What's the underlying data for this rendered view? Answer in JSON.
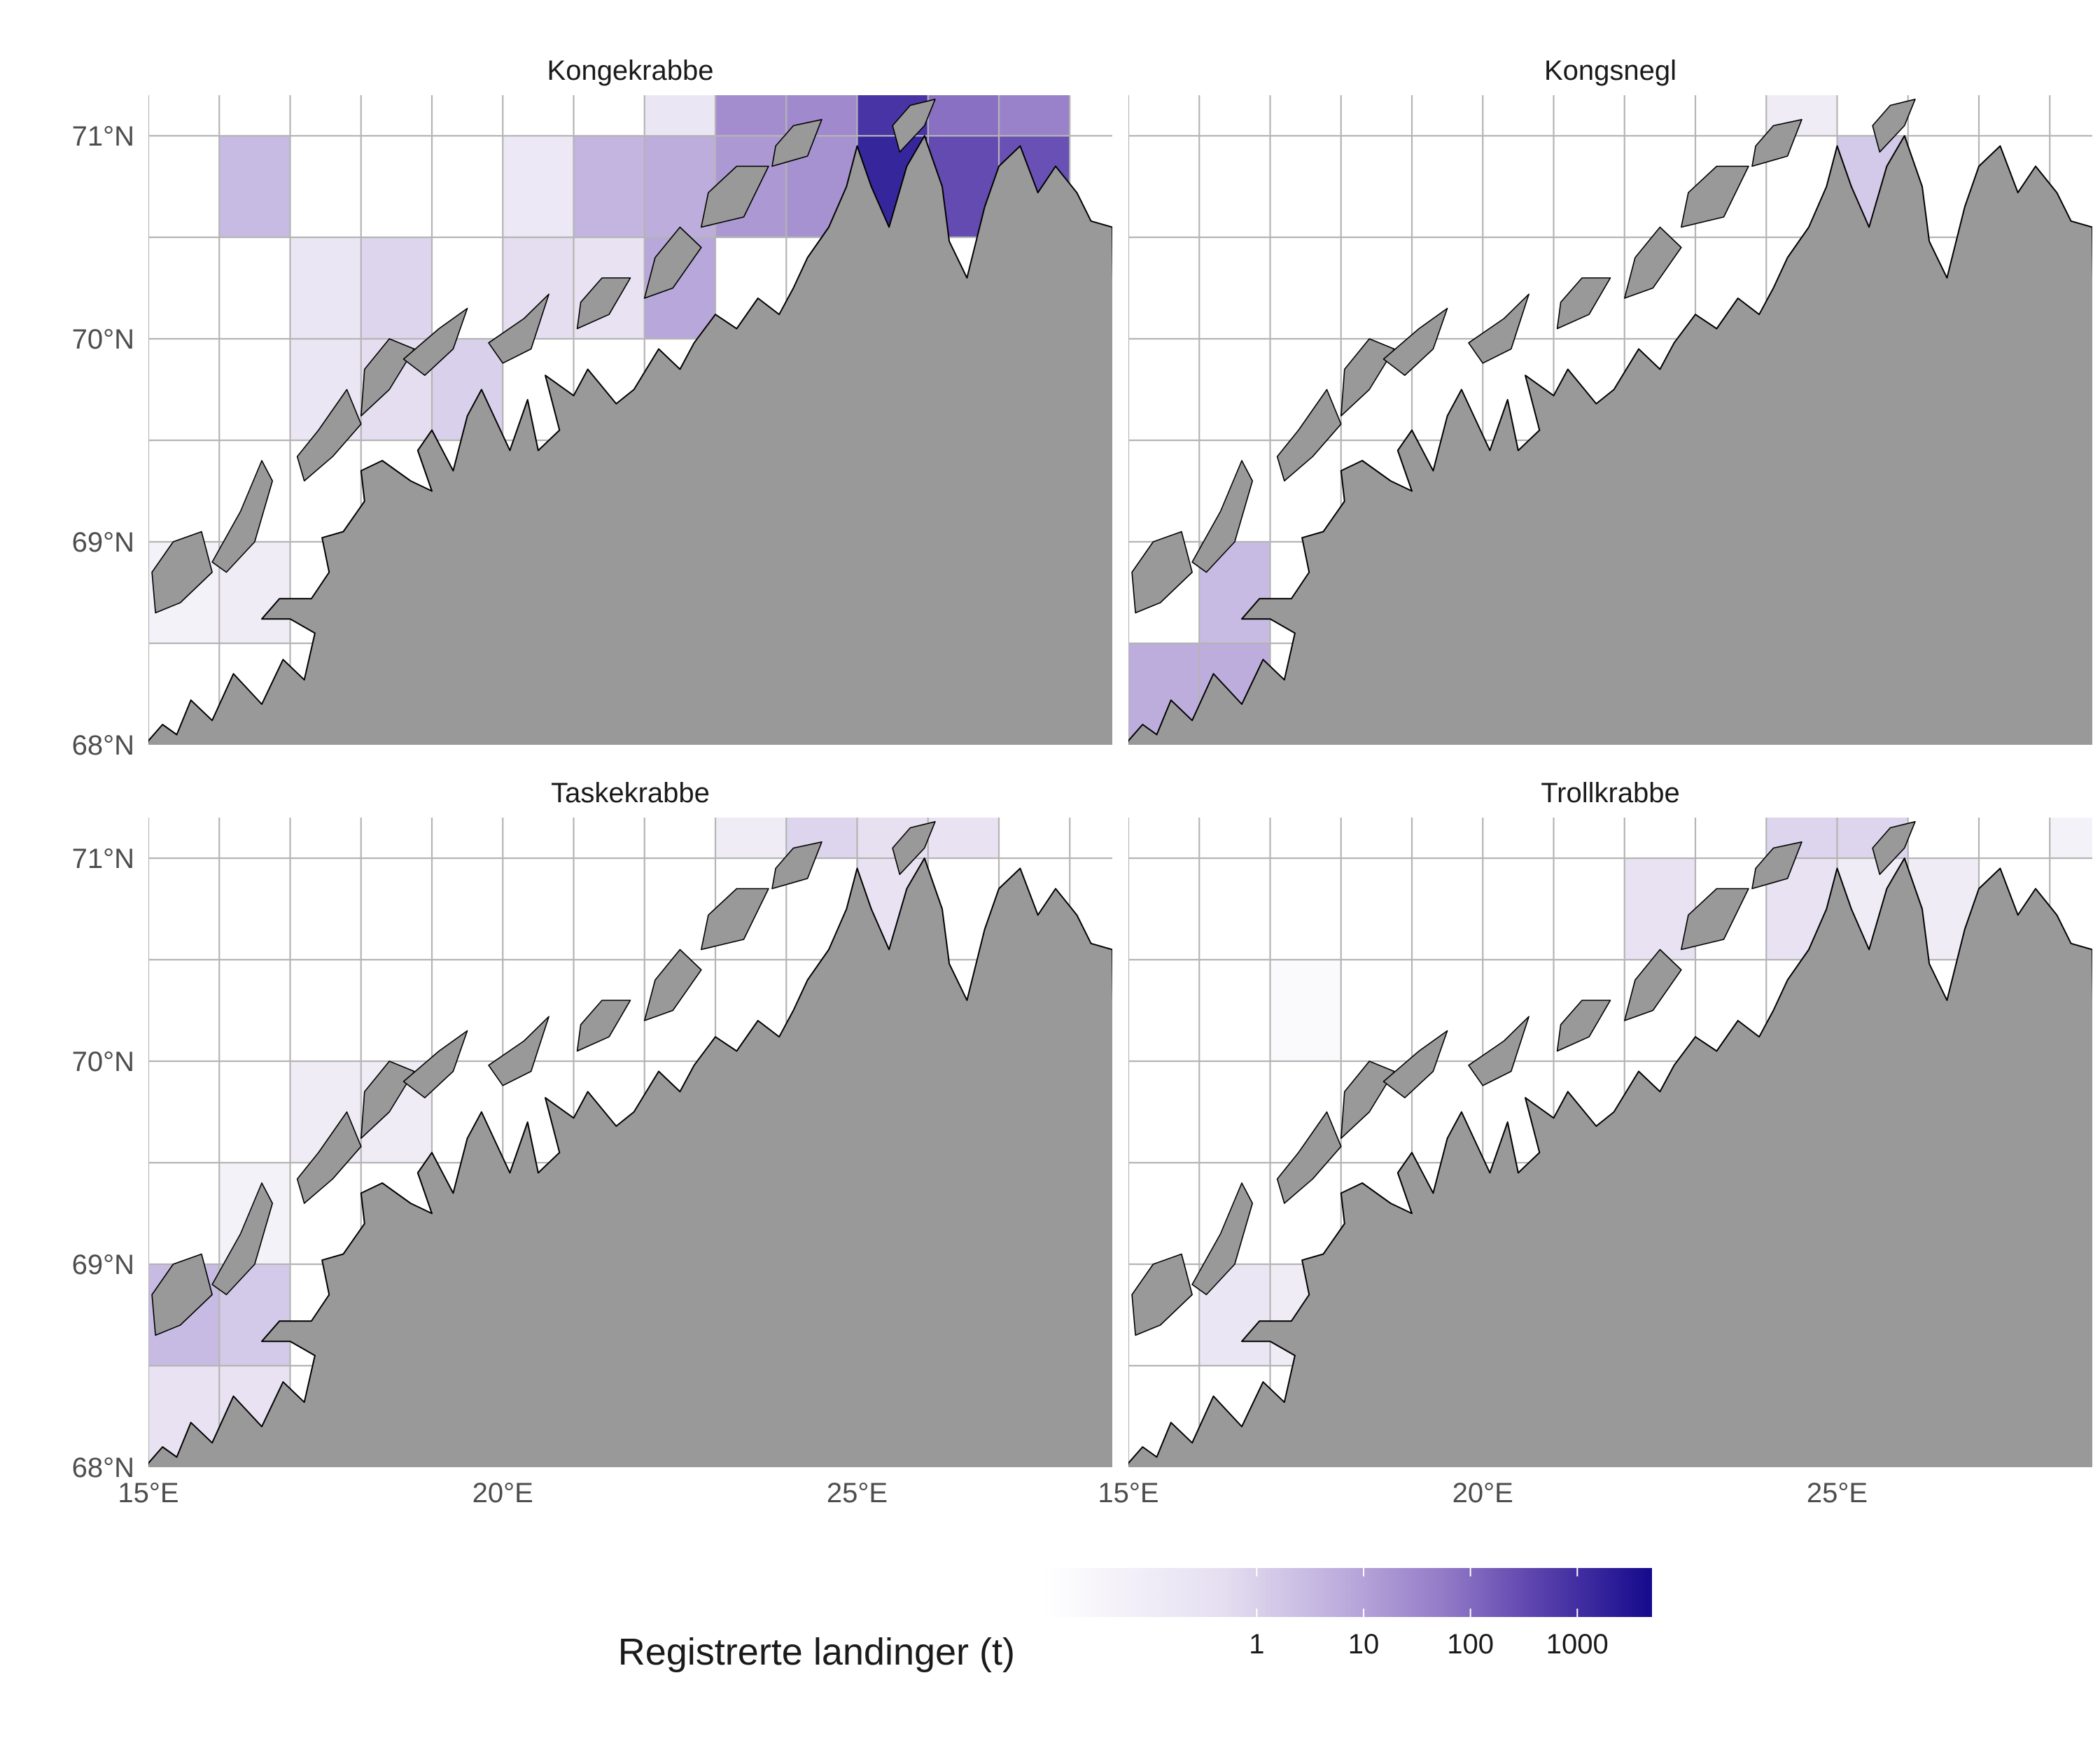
{
  "chart_data": {
    "type": "heatmap",
    "map_type": "faceted choropleth grid map",
    "x_axis": {
      "range": [
        15,
        28.6
      ],
      "ticks": [
        15,
        20,
        25
      ],
      "tick_labels": [
        "15°E",
        "20°E",
        "25°E"
      ]
    },
    "y_axis": {
      "range": [
        68,
        71.2
      ],
      "ticks": [
        68,
        69,
        70,
        71
      ],
      "tick_labels": [
        "68°N",
        "69°N",
        "70°N",
        "71°N"
      ]
    },
    "grid": {
      "lon_step": 1,
      "lat_step": 0.5
    },
    "color_scale": {
      "title": "Registrerte landinger (t)",
      "scale": "log",
      "low_color": "#ffffff",
      "high_color": "#140a8c",
      "range": [
        0.01,
        5000
      ],
      "ticks": [
        1,
        10,
        100,
        1000
      ],
      "tick_labels": [
        "1",
        "10",
        "100",
        "1000"
      ]
    },
    "panels": [
      {
        "name": "Kongekrabbe",
        "cells": [
          {
            "lon": 16,
            "lat": 70.5,
            "value": 3
          },
          {
            "lon": 17,
            "lat": 69.5,
            "value": 0.2
          },
          {
            "lon": 17,
            "lat": 70,
            "value": 0.2
          },
          {
            "lon": 18,
            "lat": 69.5,
            "value": 0.5
          },
          {
            "lon": 18,
            "lat": 70,
            "value": 0.8
          },
          {
            "lon": 19,
            "lat": 69.5,
            "value": 1
          },
          {
            "lon": 20,
            "lat": 70,
            "value": 0.5
          },
          {
            "lon": 20,
            "lat": 70.5,
            "value": 0.15
          },
          {
            "lon": 21,
            "lat": 70,
            "value": 0.3
          },
          {
            "lon": 21,
            "lat": 70.5,
            "value": 4
          },
          {
            "lon": 22,
            "lat": 70,
            "value": 8
          },
          {
            "lon": 22,
            "lat": 70.5,
            "value": 6
          },
          {
            "lon": 22,
            "lat": 71,
            "value": 0.2
          },
          {
            "lon": 23,
            "lat": 70.5,
            "value": 15
          },
          {
            "lon": 23,
            "lat": 71,
            "value": 25
          },
          {
            "lon": 24,
            "lat": 70.5,
            "value": 20
          },
          {
            "lon": 24,
            "lat": 71,
            "value": 30
          },
          {
            "lon": 25,
            "lat": 70,
            "value": 1500
          },
          {
            "lon": 25,
            "lat": 70.5,
            "value": 1500
          },
          {
            "lon": 25,
            "lat": 71,
            "value": 800
          },
          {
            "lon": 26,
            "lat": 70.5,
            "value": 300
          },
          {
            "lon": 26,
            "lat": 71,
            "value": 80
          },
          {
            "lon": 27,
            "lat": 70.5,
            "value": 250
          },
          {
            "lon": 27,
            "lat": 71,
            "value": 40
          },
          {
            "lon": 15,
            "lat": 68.5,
            "value": 0.05
          },
          {
            "lon": 16,
            "lat": 68.5,
            "value": 0.1
          }
        ]
      },
      {
        "name": "Kongsnegl",
        "cells": [
          {
            "lon": 24,
            "lat": 71,
            "value": 0.1
          },
          {
            "lon": 25,
            "lat": 70,
            "value": 1.5
          },
          {
            "lon": 25,
            "lat": 70.5,
            "value": 1.5
          },
          {
            "lon": 15,
            "lat": 68,
            "value": 6
          },
          {
            "lon": 16,
            "lat": 68,
            "value": 6
          },
          {
            "lon": 16,
            "lat": 68.5,
            "value": 3
          }
        ]
      },
      {
        "name": "Taskekrabbe",
        "cells": [
          {
            "lon": 23,
            "lat": 71,
            "value": 0.1
          },
          {
            "lon": 24,
            "lat": 71,
            "value": 0.8
          },
          {
            "lon": 25,
            "lat": 71,
            "value": 0.4
          },
          {
            "lon": 26,
            "lat": 71,
            "value": 0.3
          },
          {
            "lon": 25,
            "lat": 70,
            "value": 0.3
          },
          {
            "lon": 25,
            "lat": 70.5,
            "value": 0.3
          },
          {
            "lon": 17,
            "lat": 69.5,
            "value": 0.1
          },
          {
            "lon": 18,
            "lat": 69.5,
            "value": 0.1
          },
          {
            "lon": 16,
            "lat": 69,
            "value": 0.05
          },
          {
            "lon": 15,
            "lat": 68.5,
            "value": 3
          },
          {
            "lon": 16,
            "lat": 68.5,
            "value": 1.5
          },
          {
            "lon": 15,
            "lat": 68,
            "value": 0.3
          },
          {
            "lon": 16,
            "lat": 68,
            "value": 0.3
          }
        ]
      },
      {
        "name": "Trollkrabbe",
        "cells": [
          {
            "lon": 22,
            "lat": 70.5,
            "value": 0.3
          },
          {
            "lon": 24,
            "lat": 71,
            "value": 0.8
          },
          {
            "lon": 25,
            "lat": 71,
            "value": 0.8
          },
          {
            "lon": 24,
            "lat": 70.5,
            "value": 0.3
          },
          {
            "lon": 25,
            "lat": 70.5,
            "value": 0.1
          },
          {
            "lon": 26,
            "lat": 70.5,
            "value": 0.1
          },
          {
            "lon": 28,
            "lat": 71,
            "value": 0.05
          },
          {
            "lon": 17,
            "lat": 70,
            "value": 0.02
          },
          {
            "lon": 16,
            "lat": 68.5,
            "value": 0.2
          },
          {
            "lon": 17,
            "lat": 68.5,
            "value": 0.1
          }
        ]
      }
    ]
  },
  "colors": {
    "land_fill": "#999999",
    "coast_stroke": "#000000",
    "graticule": "#b4b4b4",
    "background": "#ffffff",
    "title_text": "#1a1a1a",
    "tick_text": "#4d4d4d"
  }
}
